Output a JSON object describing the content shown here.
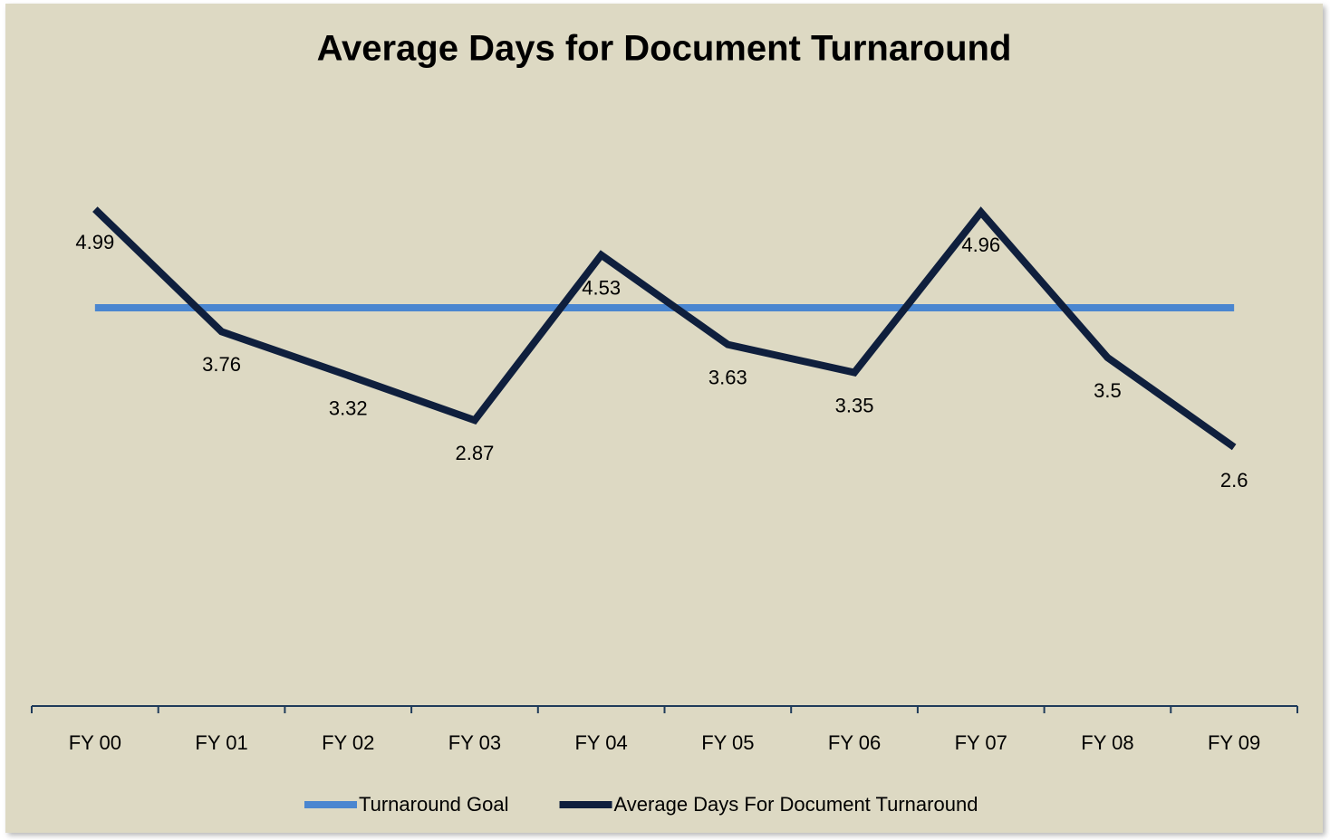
{
  "chart_data": {
    "type": "line",
    "title": "Average Days for Document Turnaround",
    "categories": [
      "FY 00",
      "FY 01",
      "FY 02",
      "FY 03",
      "FY 04",
      "FY 05",
      "FY 06",
      "FY 07",
      "FY 08",
      "FY 09"
    ],
    "series": [
      {
        "name": "Turnaround Goal",
        "color": "#4a86d0",
        "values": [
          4,
          4,
          4,
          4,
          4,
          4,
          4,
          4,
          4,
          4
        ]
      },
      {
        "name": "Average Days For Document Turnaround",
        "color": "#0f1f3d",
        "values": [
          4.99,
          3.76,
          3.32,
          2.87,
          4.53,
          3.63,
          3.35,
          4.96,
          3.5,
          2.6
        ],
        "data_labels": true
      }
    ],
    "ylim": [
      0,
      6
    ],
    "legend": "bottom"
  }
}
